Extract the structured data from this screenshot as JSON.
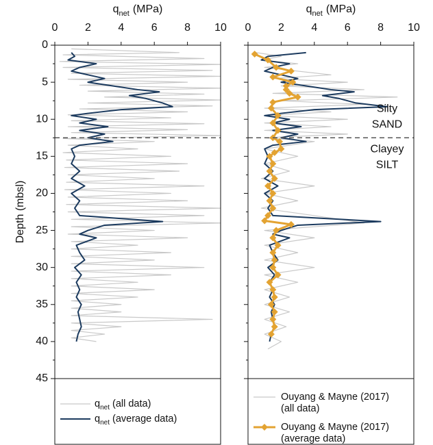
{
  "chart_data": [
    {
      "type": "line",
      "xlabel": [
        "q",
        "net",
        "(MPa)"
      ],
      "ylabel": "Depth (mbsl)",
      "xlim": [
        0,
        10
      ],
      "xticks": [
        0,
        2,
        4,
        6,
        8,
        10
      ],
      "ylim": [
        0,
        45
      ],
      "yticks": [
        0,
        5,
        10,
        15,
        20,
        25,
        30,
        35,
        40,
        45
      ],
      "y_inverted": true,
      "ytick_labels": true,
      "boundary_depth": 12.5,
      "legend_style": "subscript",
      "series": [
        {
          "name": [
            "q",
            "net",
            "(all data)"
          ],
          "color": "#c8c8c8",
          "width": 1.2,
          "marker": "none",
          "depth": [
            0.5,
            1,
            1.3,
            1.8,
            2.2,
            2.6,
            3,
            3.4,
            3.8,
            4.2,
            4.6,
            5,
            5.4,
            5.8,
            6.2,
            6.6,
            7,
            7.4,
            7.8,
            8.2,
            8.6,
            9,
            9.4,
            9.8,
            10.2,
            10.6,
            11,
            11.4,
            11.8,
            12.2,
            12.6,
            13,
            13.5,
            14,
            14.5,
            15,
            15.5,
            16,
            16.5,
            17,
            17.5,
            18,
            18.5,
            19,
            19.5,
            20,
            20.5,
            21,
            21.5,
            22,
            22.5,
            23,
            23.5,
            24,
            24.5,
            25,
            25.5,
            26,
            26.5,
            27,
            27.5,
            28,
            28.5,
            29,
            29.5,
            30,
            30.5,
            31,
            31.5,
            32,
            32.5,
            33,
            33.5,
            34,
            34.5,
            35,
            35.5,
            36,
            36.5,
            37,
            37.5,
            38,
            38.5,
            39,
            39.5,
            40
          ],
          "values": [
            1,
            7.5,
            0.5,
            9,
            0.3,
            10,
            0.5,
            9.5,
            1,
            10,
            0.8,
            8,
            1.5,
            10,
            2,
            9,
            3,
            10,
            2,
            9.5,
            1.5,
            8,
            0.8,
            7,
            1,
            9,
            0.8,
            8,
            1,
            10,
            0.5,
            6,
            0.8,
            5,
            0.5,
            7,
            0.7,
            8,
            0.6,
            7.5,
            0.8,
            6,
            0.7,
            9,
            0.6,
            7,
            0.8,
            8,
            0.7,
            10,
            0.8,
            9,
            1,
            10,
            1,
            6,
            0.8,
            8,
            1,
            5,
            1,
            7,
            1,
            6,
            1,
            9,
            1,
            7,
            1,
            5,
            1,
            6,
            1,
            5,
            1,
            4,
            1,
            4,
            1,
            9.5,
            1,
            4,
            1,
            3,
            1,
            2.5
          ]
        },
        {
          "name": [
            "q",
            "net",
            "(average data)"
          ],
          "color": "#1b3a5e",
          "width": 2,
          "marker": "none",
          "depth": [
            1,
            1.5,
            2,
            2.5,
            3,
            3.5,
            4,
            4.5,
            5,
            5.5,
            6,
            6.3,
            6.8,
            7.2,
            7.8,
            8.3,
            8.7,
            9.2,
            9.5,
            10,
            10.5,
            11,
            11.5,
            12,
            12.5,
            13,
            13.5,
            14,
            15,
            16,
            17,
            18,
            19,
            20,
            21,
            22,
            23,
            23.8,
            24.3,
            25,
            25.5,
            26,
            27,
            28,
            29,
            30,
            31,
            32,
            33,
            34,
            35,
            36,
            37,
            38,
            39,
            40
          ],
          "values": [
            1,
            1.2,
            0.8,
            2.5,
            1.5,
            1,
            2,
            3,
            2,
            3.5,
            5,
            6.3,
            4.5,
            5.5,
            6.5,
            7.1,
            4,
            2,
            1,
            2.5,
            1.5,
            3.2,
            1.5,
            3,
            2,
            3.5,
            1.5,
            1,
            1.2,
            1,
            1.5,
            1,
            1.8,
            1,
            1.5,
            1.2,
            1.5,
            6.5,
            3,
            2,
            1.5,
            2.5,
            1.3,
            1.5,
            1.8,
            1.2,
            1.6,
            1.3,
            1.5,
            1.3,
            1.6,
            1.4,
            1.5,
            1.6,
            1.4,
            1.3
          ]
        }
      ]
    },
    {
      "type": "line",
      "xlabel": [
        "q",
        "net",
        "(MPa)"
      ],
      "xlim": [
        0,
        10
      ],
      "xticks": [
        0,
        2,
        4,
        6,
        8,
        10
      ],
      "ylim": [
        0,
        45
      ],
      "yticks": [
        0,
        5,
        10,
        15,
        20,
        25,
        30,
        35,
        40,
        45
      ],
      "y_inverted": true,
      "ytick_labels": false,
      "boundary_depth": 12.5,
      "legend_style": "lines",
      "annotations": [
        [
          "Silty",
          "SAND"
        ],
        [
          "Clayey",
          "SILT"
        ]
      ],
      "series": [
        {
          "name": [
            "Ouyang & Mayne (2017)",
            "(all data)"
          ],
          "color": "#c8c8c8",
          "width": 1.2,
          "marker": "none",
          "depth": [
            1,
            1.5,
            2,
            2.5,
            3,
            4,
            4.5,
            5,
            5.5,
            6,
            6.5,
            7,
            7.5,
            8,
            8.5,
            9,
            9.5,
            10,
            10.5,
            11,
            11.5,
            12,
            12.5,
            13,
            14,
            15,
            16,
            17,
            18,
            19,
            20,
            21,
            22,
            23,
            24,
            25,
            26,
            27,
            28,
            29,
            30,
            31,
            32,
            33,
            34,
            35,
            36,
            37,
            38,
            39,
            40,
            41
          ],
          "values": [
            0.5,
            2,
            0.8,
            3,
            1,
            5,
            1.5,
            6,
            2,
            7,
            1.5,
            9,
            2,
            7,
            1,
            5,
            1,
            6,
            1,
            5,
            1,
            6,
            1,
            4,
            1,
            3,
            1,
            2.5,
            0.8,
            4,
            1,
            3,
            0.8,
            4,
            7,
            1,
            4,
            1,
            3,
            1,
            4,
            1,
            3,
            1,
            2.5,
            1,
            2.5,
            1,
            2.3,
            1,
            2,
            1.2
          ]
        },
        {
          "color": "#1b3a5e",
          "width": 2,
          "marker": "none",
          "depth": [
            1,
            1.5,
            2,
            2.5,
            3,
            3.5,
            4,
            4.5,
            5,
            5.5,
            6,
            6.3,
            6.8,
            7.2,
            7.8,
            8.3,
            8.7,
            9.2,
            9.5,
            10,
            10.5,
            11,
            11.5,
            12,
            12.5,
            13,
            13.5,
            14,
            15,
            16,
            17,
            18,
            19,
            20,
            21,
            22,
            23,
            23.8,
            24.3,
            25,
            25.5,
            26,
            27,
            28,
            29,
            30,
            31,
            32,
            33,
            34,
            35,
            36,
            37,
            38,
            39,
            40
          ],
          "values": [
            3.5,
            1.2,
            0.8,
            2.5,
            1.5,
            1,
            2,
            3,
            2,
            3.5,
            5,
            6.4,
            4.5,
            5.5,
            6.5,
            8.4,
            4,
            2,
            1,
            2.5,
            1.5,
            3.2,
            1.5,
            3,
            2,
            3.5,
            1.5,
            1,
            1.2,
            1,
            1.5,
            1,
            1.8,
            1,
            1.5,
            1.2,
            1.5,
            8,
            3,
            2,
            1.5,
            2.5,
            1.3,
            1.5,
            1.8,
            1.2,
            1.6,
            1.3,
            1.5,
            1.3,
            1.6,
            1.4,
            1.5,
            1.6,
            1.4,
            1.3
          ]
        },
        {
          "name": [
            "Ouyang & Mayne (2017)",
            "(average data)"
          ],
          "color": "#e3a332",
          "width": 3,
          "marker": "diamond",
          "depth": [
            1.2,
            2,
            3,
            3.5,
            4.3,
            5,
            5.5,
            6,
            6.5,
            7,
            7.7,
            8.5,
            9.5,
            10.5,
            11.5,
            12.5,
            13,
            14,
            14.5,
            15,
            16,
            17,
            18,
            19,
            20,
            21,
            22,
            23,
            23.7,
            24.2,
            25,
            26,
            27,
            28,
            29,
            30,
            31,
            32,
            33,
            34,
            35,
            36,
            37,
            38,
            39
          ],
          "values": [
            0.4,
            1.2,
            1.7,
            2.6,
            1.5,
            2.7,
            2.3,
            2.3,
            2.5,
            3,
            1.5,
            1.4,
            1.8,
            1.5,
            1.8,
            1.5,
            1.9,
            2,
            1.6,
            1.3,
            1.5,
            1.3,
            1.6,
            1.2,
            1.5,
            1.3,
            1.5,
            1.2,
            1,
            2.6,
            1.7,
            1.5,
            1.8,
            1.5,
            1.6,
            1.5,
            1.8,
            1.3,
            1.5,
            1.6,
            1.4,
            1.6,
            1.5,
            1.6,
            1.4
          ]
        }
      ]
    }
  ]
}
